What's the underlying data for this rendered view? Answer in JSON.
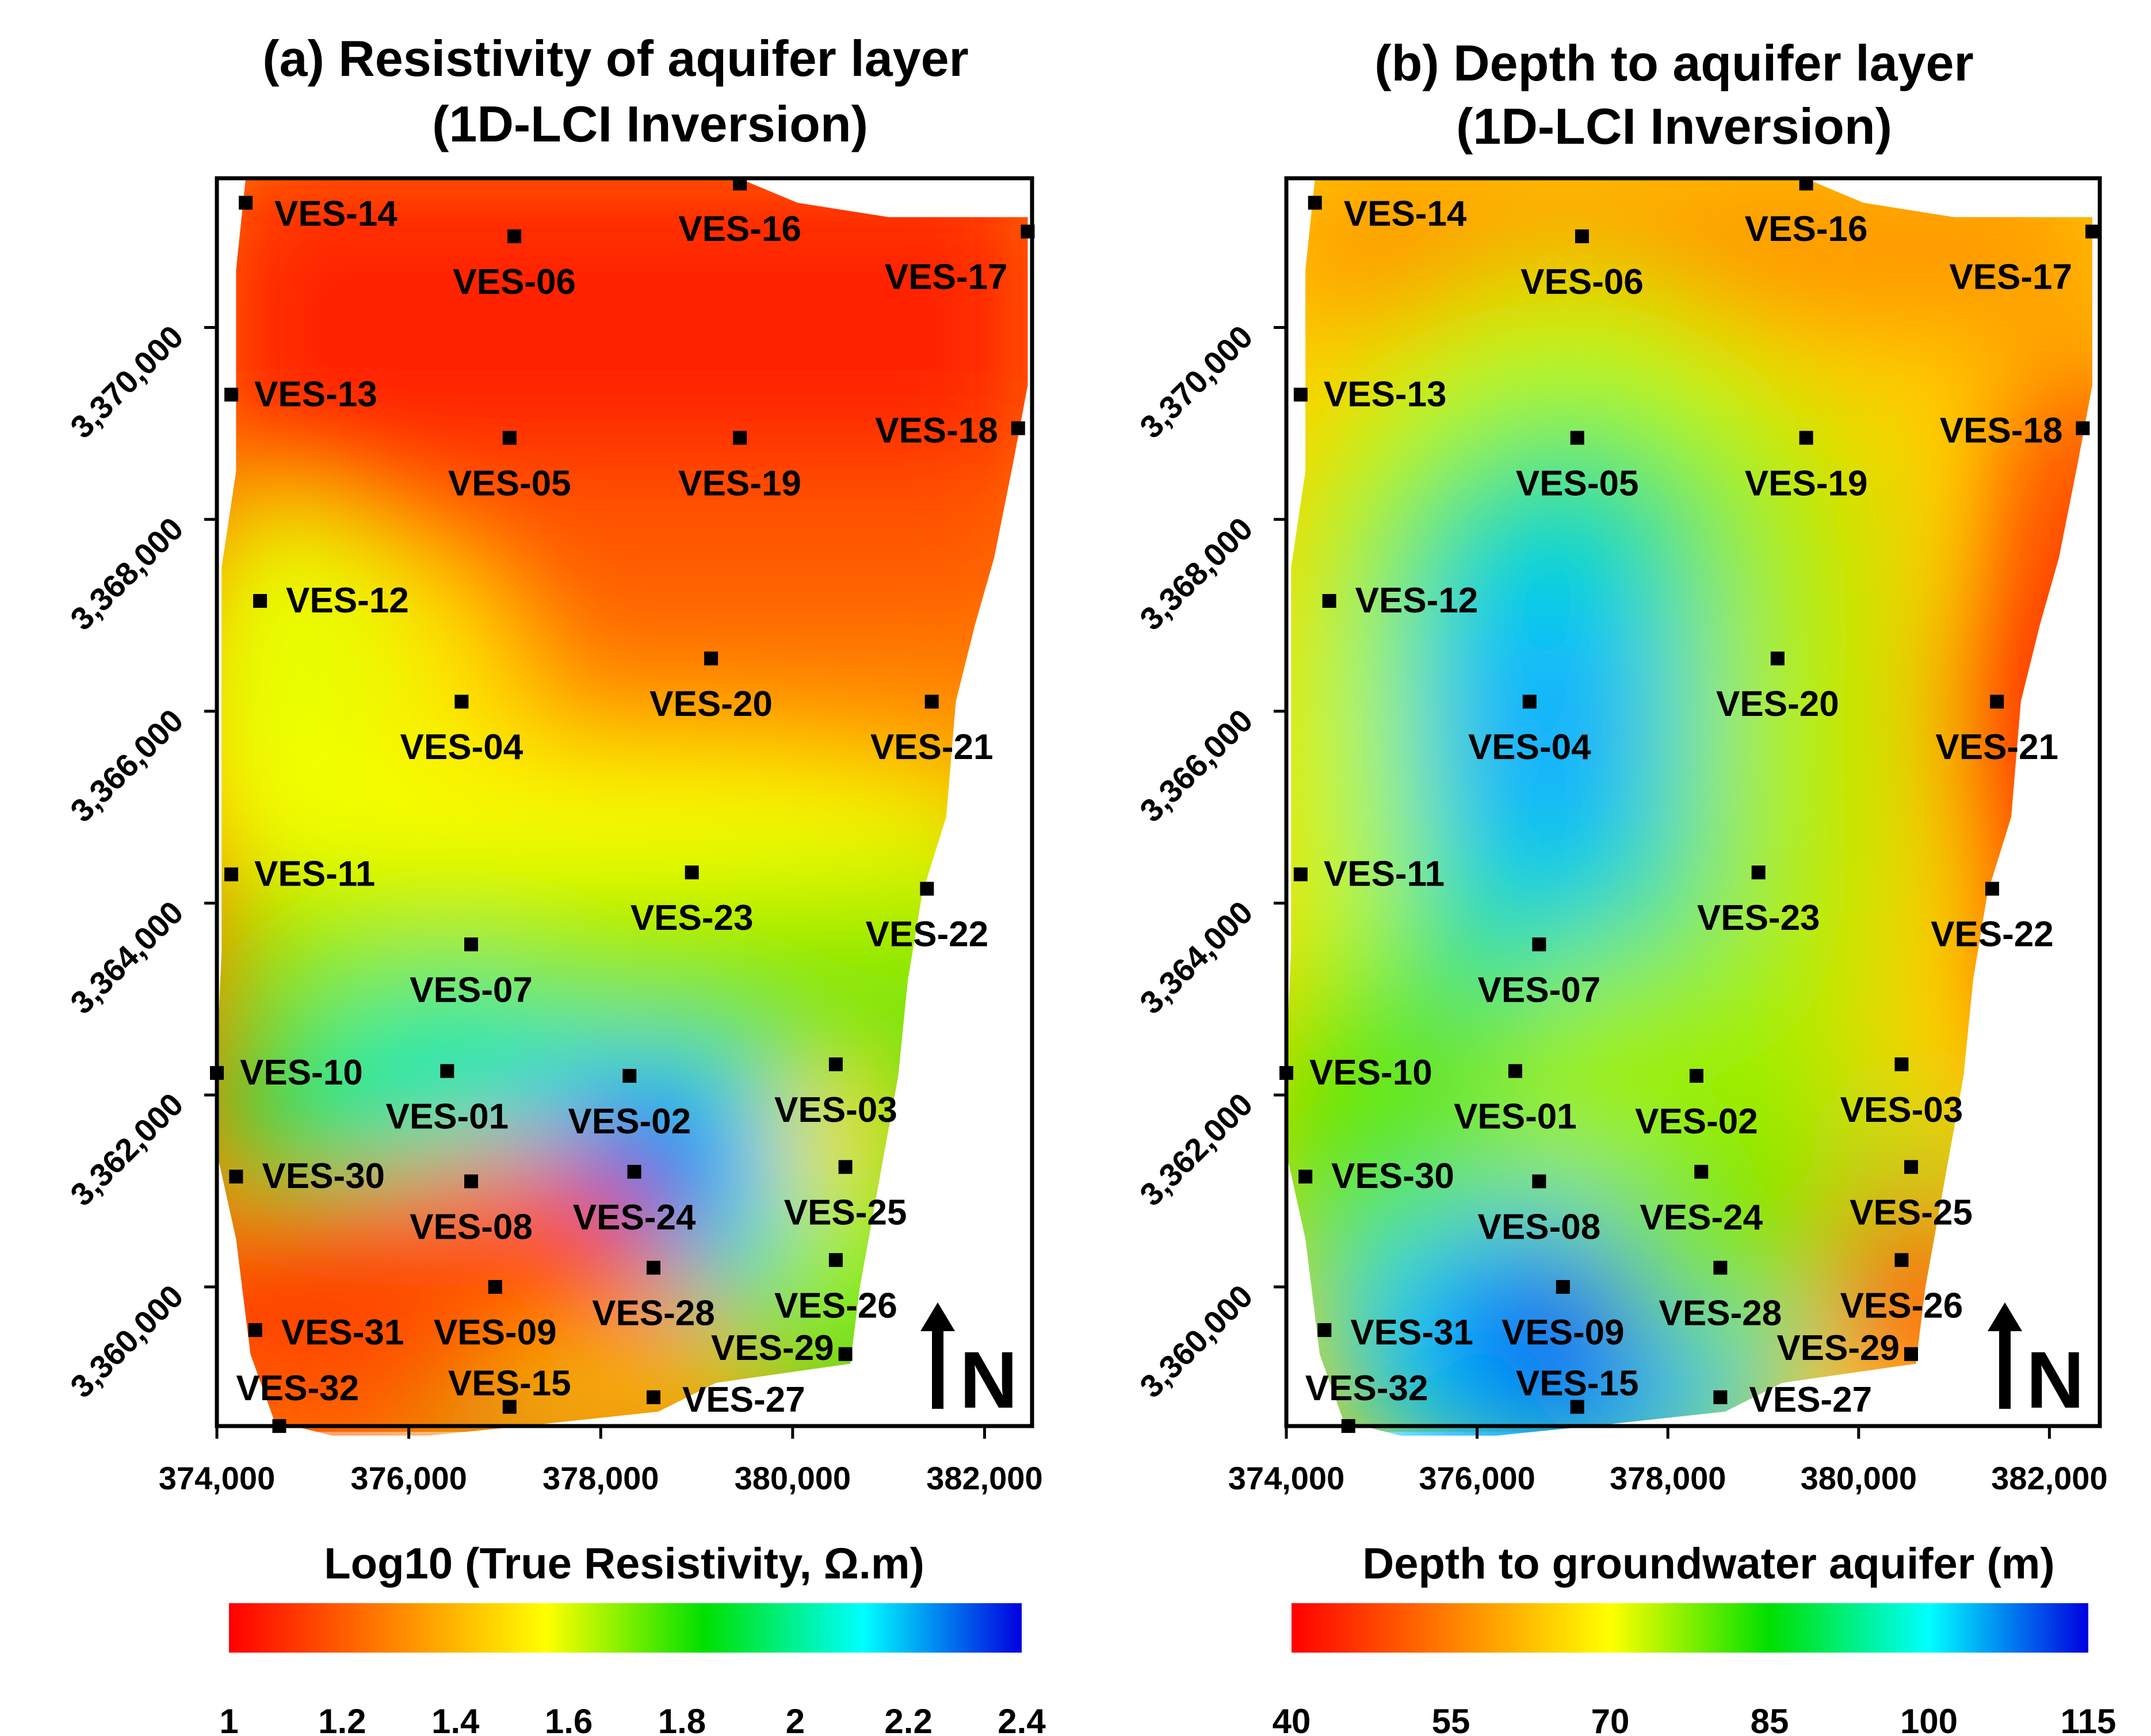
{
  "panels": [
    {
      "id": "a",
      "title_line1": "(a)  Resistivity of aquifer layer",
      "title_line2": "(1D-LCI Inversion)",
      "x_ticks": [
        "374,000",
        "376,000",
        "378,000",
        "380,000",
        "382,000"
      ],
      "y_ticks": [
        "3,360,000",
        "3,362,000",
        "3,364,000",
        "3,366,000",
        "3,368,000",
        "3,370,000"
      ],
      "north_label": "N",
      "colorbar_title": "Log10 (True Resistivity,  Ω.m)",
      "colorbar_ticks": [
        "1",
        "1.2",
        "1.4",
        "1.6",
        "1.8",
        "2",
        "2.2",
        "2.4"
      ],
      "colorbar_range": [
        1,
        2.4
      ],
      "colorbar_colors": [
        "#ff0000",
        "#ff8000",
        "#ffff00",
        "#00e000",
        "#00ffff",
        "#0000e0"
      ]
    },
    {
      "id": "b",
      "title_line1": "(b) Depth to aquifer layer",
      "title_line2": "(1D-LCI Inversion)",
      "x_ticks": [
        "374,000",
        "376,000",
        "378,000",
        "380,000",
        "382,000"
      ],
      "y_ticks": [
        "3,360,000",
        "3,362,000",
        "3,364,000",
        "3,366,000",
        "3,368,000",
        "3,370,000"
      ],
      "north_label": "N",
      "colorbar_title": "Depth to groundwater aquifer  (m)",
      "colorbar_ticks": [
        "40",
        "55",
        "70",
        "85",
        "100",
        "115"
      ],
      "colorbar_range": [
        40,
        115
      ],
      "colorbar_colors": [
        "#ff0000",
        "#ff8000",
        "#ffff00",
        "#00e000",
        "#00ffff",
        "#0000e0"
      ]
    }
  ],
  "stations": [
    {
      "name": "VES-14",
      "e": 374300,
      "n": 3371300
    },
    {
      "name": "VES-06",
      "e": 377100,
      "n": 3370950
    },
    {
      "name": "VES-16",
      "e": 379450,
      "n": 3371500
    },
    {
      "name": "VES-17",
      "e": 382450,
      "n": 3371000
    },
    {
      "name": "VES-13",
      "e": 374150,
      "n": 3369300
    },
    {
      "name": "VES-05",
      "e": 377050,
      "n": 3368850
    },
    {
      "name": "VES-19",
      "e": 379450,
      "n": 3368850
    },
    {
      "name": "VES-18",
      "e": 382350,
      "n": 3368950
    },
    {
      "name": "VES-12",
      "e": 374450,
      "n": 3367150
    },
    {
      "name": "VES-20",
      "e": 379150,
      "n": 3366550
    },
    {
      "name": "VES-04",
      "e": 376550,
      "n": 3366100
    },
    {
      "name": "VES-21",
      "e": 381450,
      "n": 3366100
    },
    {
      "name": "VES-11",
      "e": 374150,
      "n": 3364300
    },
    {
      "name": "VES-23",
      "e": 378950,
      "n": 3364320
    },
    {
      "name": "VES-22",
      "e": 381400,
      "n": 3364150
    },
    {
      "name": "VES-07",
      "e": 376650,
      "n": 3363570
    },
    {
      "name": "VES-10",
      "e": 374000,
      "n": 3362230
    },
    {
      "name": "VES-01",
      "e": 376400,
      "n": 3362250
    },
    {
      "name": "VES-02",
      "e": 378300,
      "n": 3362200
    },
    {
      "name": "VES-03",
      "e": 380450,
      "n": 3362320
    },
    {
      "name": "VES-30",
      "e": 374200,
      "n": 3361150
    },
    {
      "name": "VES-08",
      "e": 376650,
      "n": 3361100
    },
    {
      "name": "VES-24",
      "e": 378350,
      "n": 3361200
    },
    {
      "name": "VES-25",
      "e": 380550,
      "n": 3361250
    },
    {
      "name": "VES-28",
      "e": 378550,
      "n": 3360200
    },
    {
      "name": "VES-26",
      "e": 380450,
      "n": 3360280
    },
    {
      "name": "VES-09",
      "e": 376900,
      "n": 3360000
    },
    {
      "name": "VES-31",
      "e": 374400,
      "n": 3359550
    },
    {
      "name": "VES-29",
      "e": 380550,
      "n": 3359300
    },
    {
      "name": "VES-15",
      "e": 377050,
      "n": 3358750
    },
    {
      "name": "VES-27",
      "e": 378550,
      "n": 3358850
    },
    {
      "name": "VES-32",
      "e": 374650,
      "n": 3358550
    }
  ]
}
